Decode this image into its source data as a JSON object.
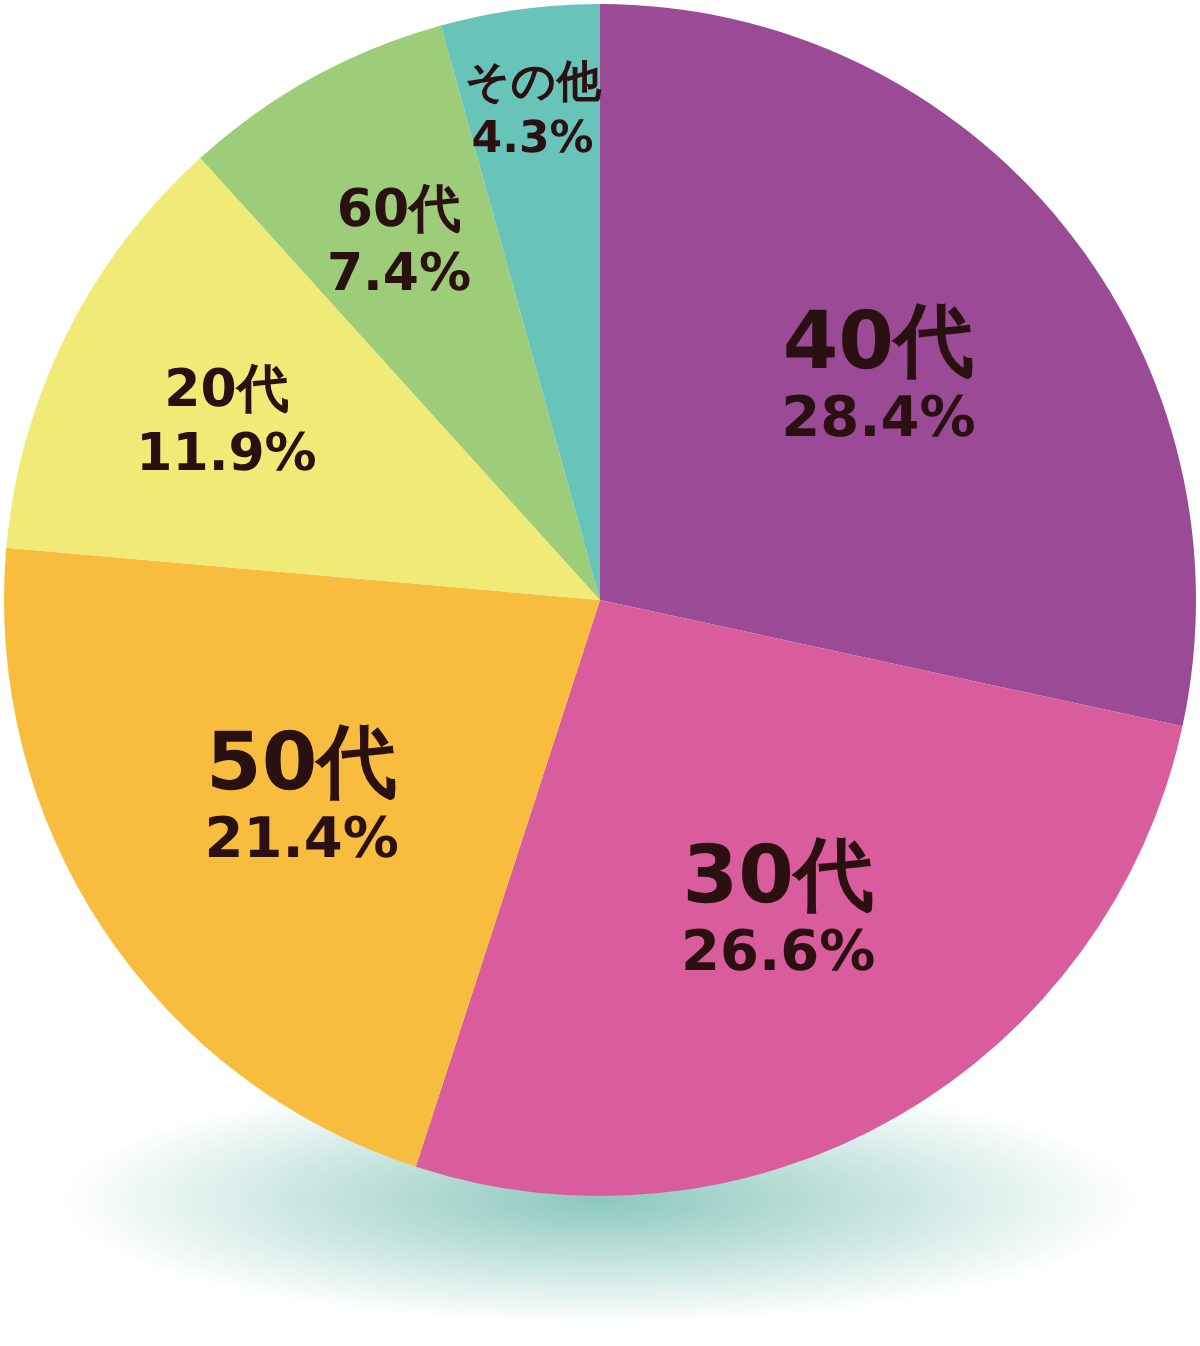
{
  "chart_data": {
    "type": "pie",
    "categories": [
      "40代",
      "30代",
      "50代",
      "20代",
      "60代",
      "その他"
    ],
    "values": [
      28.4,
      26.6,
      21.4,
      11.9,
      7.4,
      4.3
    ],
    "colors": [
      "#9b4a96",
      "#d95c9c",
      "#f8bd3f",
      "#f0ea76",
      "#9dcd78",
      "#68c3b9"
    ],
    "value_labels": [
      "28.4%",
      "26.6%",
      "21.4%",
      "11.9%",
      "7.4%",
      "4.3%"
    ]
  }
}
